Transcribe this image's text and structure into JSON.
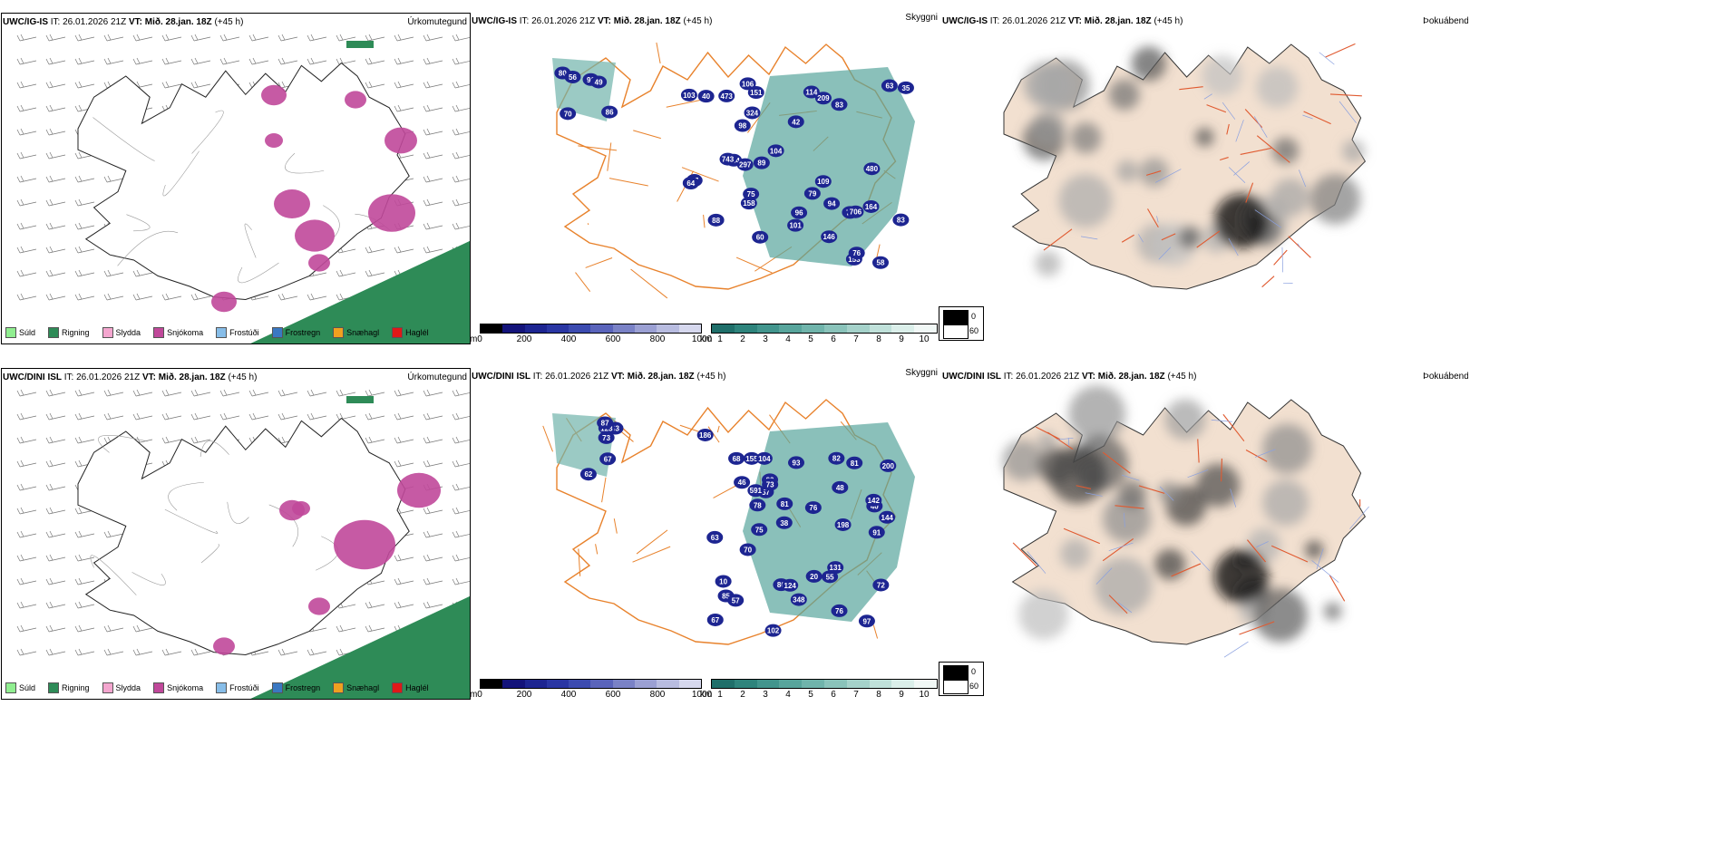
{
  "panels": [
    {
      "id": "prec-top",
      "header": {
        "model": "UWC/IG-IS",
        "it_label": "IT:",
        "it": "26.01.2026 21Z",
        "vt_label": "VT:",
        "vt": "Mið. 28.jan. 18Z",
        "lead": "(+45 h)"
      },
      "title": "Úrkomutegund"
    },
    {
      "id": "vis-top",
      "header": {
        "model": "UWC/IG-IS",
        "it_label": "IT:",
        "it": "26.01.2026 21Z",
        "vt_label": "VT:",
        "vt": "Mið. 28.jan. 18Z",
        "lead": "(+45 h)"
      },
      "title": "Skyggni"
    },
    {
      "id": "fog-top",
      "header": {
        "model": "UWC/IG-IS",
        "it_label": "IT:",
        "it": "26.01.2026 21Z",
        "vt_label": "VT:",
        "vt": "Mið. 28.jan. 18Z",
        "lead": "(+45 h)"
      },
      "title": "Þokuábendi"
    },
    {
      "id": "prec-bot",
      "header": {
        "model": "UWC/DINI ISL",
        "it_label": "IT:",
        "it": "26.01.2026 21Z",
        "vt_label": "VT:",
        "vt": "Mið. 28.jan. 18Z",
        "lead": "(+45 h)"
      },
      "title": "Úrkomutegund"
    },
    {
      "id": "vis-bot",
      "header": {
        "model": "UWC/DINI ISL",
        "it_label": "IT:",
        "it": "26.01.2026 21Z",
        "vt_label": "VT:",
        "vt": "Mið. 28.jan. 18Z",
        "lead": "(+45 h)"
      },
      "title": "Skyggni"
    },
    {
      "id": "fog-bot",
      "header": {
        "model": "UWC/DINI ISL",
        "it_label": "IT:",
        "it": "26.01.2026 21Z",
        "vt_label": "VT:",
        "vt": "Mið. 28.jan. 18Z",
        "lead": "(+45 h)"
      },
      "title": "Þokuábendi"
    }
  ],
  "precip_legend": [
    {
      "label": "Súld",
      "color": "#90ee90"
    },
    {
      "label": "Rigning",
      "color": "#2e8b57"
    },
    {
      "label": "Slydda",
      "color": "#f4a6cf"
    },
    {
      "label": "Snjókoma",
      "color": "#c0489a"
    },
    {
      "label": "Frostúði",
      "color": "#87bde8"
    },
    {
      "label": "Frostregn",
      "color": "#3a78c2"
    },
    {
      "label": "Snæhagl",
      "color": "#f0a020"
    },
    {
      "label": "Haglél",
      "color": "#e01818"
    }
  ],
  "visibility_scale_m": {
    "unit": "m",
    "ticks": [
      "0",
      "200",
      "400",
      "600",
      "800",
      "1000"
    ],
    "colors": [
      "#000000",
      "#13137a",
      "#1d2591",
      "#2a36a3",
      "#3c4bb0",
      "#5a64bb",
      "#7a82c6",
      "#9ba0d3",
      "#b8bce0",
      "#d6d8ee"
    ]
  },
  "visibility_scale_km": {
    "unit": "km",
    "ticks": [
      "1",
      "2",
      "3",
      "4",
      "5",
      "6",
      "7",
      "8",
      "9",
      "10"
    ],
    "colors": [
      "#1f6f6a",
      "#2e847c",
      "#42958d",
      "#58a59c",
      "#70b4ab",
      "#8ac3ba",
      "#a5d2ca",
      "#c0e1da",
      "#dbefea",
      "#f1f8f6"
    ]
  },
  "fog_legend": [
    {
      "label": "0",
      "color": "#000000"
    },
    {
      "label": "60",
      "color": "#ffffff"
    }
  ],
  "vis_labels_top": [
    "86",
    "80",
    "91",
    "49",
    "56",
    "70",
    "58",
    "98",
    "153",
    "83",
    "158",
    "101",
    "42",
    "76",
    "706",
    "109",
    "83",
    "63",
    "104",
    "151",
    "324",
    "473",
    "40",
    "184",
    "106",
    "209",
    "103",
    "97",
    "297",
    "64",
    "76",
    "89",
    "114",
    "480",
    "743",
    "35",
    "79",
    "88",
    "146",
    "75",
    "96",
    "164",
    "60",
    "94"
  ],
  "vis_labels_bot": [
    "63",
    "67",
    "73",
    "62",
    "123",
    "87",
    "76",
    "10",
    "20",
    "48",
    "67",
    "86",
    "144",
    "186",
    "198",
    "131",
    "57",
    "81",
    "78",
    "155",
    "200",
    "85",
    "57",
    "348",
    "76",
    "124",
    "91",
    "40",
    "89",
    "75",
    "104",
    "70",
    "68",
    "102",
    "93",
    "72",
    "591",
    "73",
    "55",
    "81",
    "46",
    "142",
    "63",
    "38",
    "97",
    "82"
  ]
}
